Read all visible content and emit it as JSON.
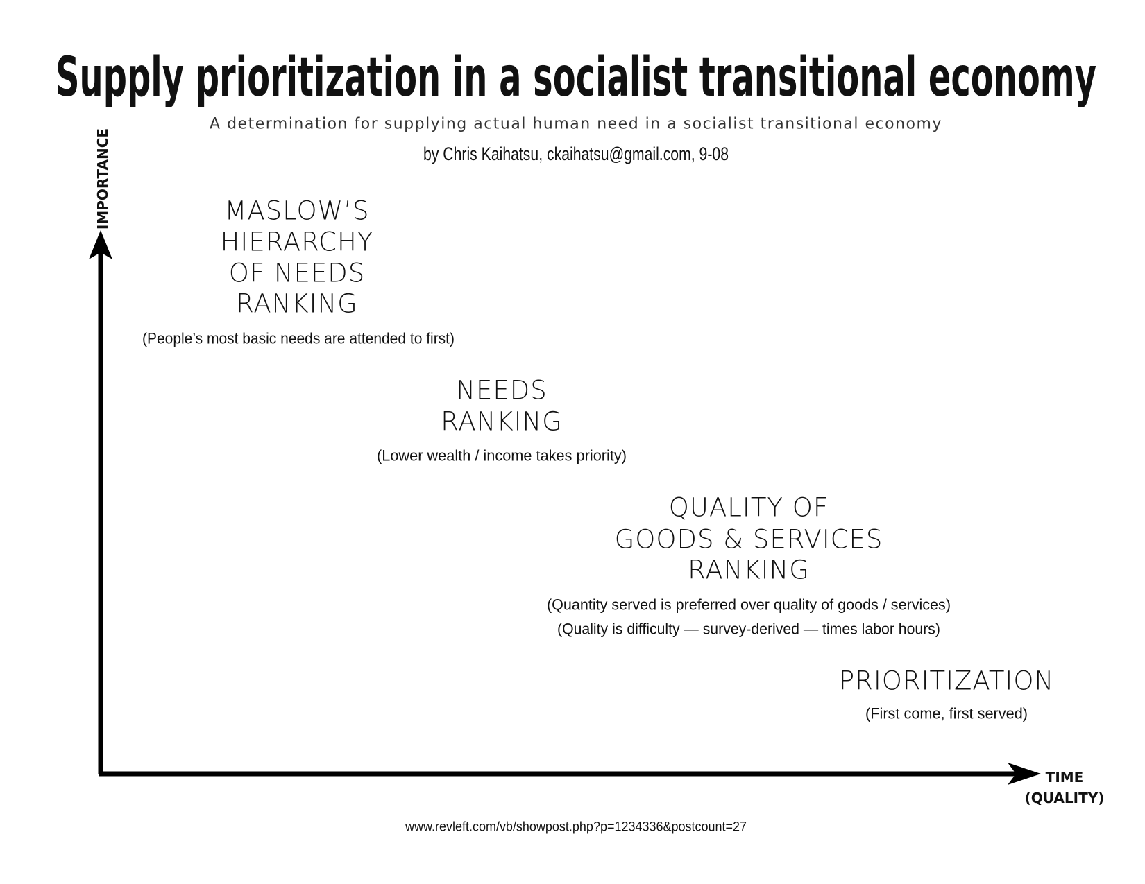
{
  "header": {
    "title": "Supply prioritization in a socialist transitional economy",
    "subtitle": "A determination for supplying actual human need in a socialist transitional economy",
    "byline": "by Chris Kaihatsu, ckaihatsu@gmail.com, 9-08"
  },
  "axes": {
    "y_label": "IMPORTANCE",
    "x_label": [
      "TIME",
      "(QUALITY)"
    ]
  },
  "nodes": [
    {
      "label": [
        "MASLOW’S",
        "HIERARCHY",
        "OF NEEDS",
        "RANKING"
      ],
      "notes": [
        "(People’s most basic needs are attended to first)"
      ]
    },
    {
      "label": [
        "NEEDS",
        "RANKING"
      ],
      "notes": [
        "(Lower wealth / income takes priority)"
      ]
    },
    {
      "label": [
        "QUALITY OF",
        "GOODS & SERVICES",
        "RANKING"
      ],
      "notes": [
        "(Quantity served is preferred over quality of goods / services)",
        "(Quality is difficulty — survey-derived — times labor hours)"
      ]
    },
    {
      "label": [
        "PRIORITIZATION"
      ],
      "notes": [
        "(First come, first served)"
      ]
    }
  ],
  "footer": "www.revleft.com/vb/showpost.php?p=1234336&postcount=27"
}
